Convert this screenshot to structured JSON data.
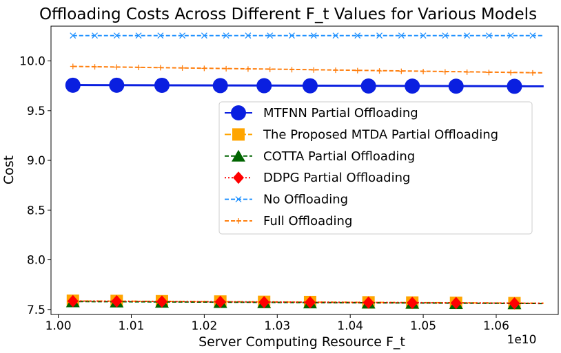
{
  "chart_data": {
    "type": "line",
    "title": "Offloading Costs Across Different F_t Values for Various Models",
    "xlabel": "Server Computing Resource F_t",
    "ylabel": "Cost",
    "x_offset_text": "1e10",
    "xlim": [
      0.999,
      1.0685
    ],
    "ylim": [
      7.45,
      10.35
    ],
    "x_ticks": [
      1.0,
      1.01,
      1.02,
      1.03,
      1.04,
      1.05,
      1.06
    ],
    "x_tick_labels": [
      "1.00",
      "1.01",
      "1.02",
      "1.03",
      "1.04",
      "1.05",
      "1.06"
    ],
    "y_ticks": [
      7.5,
      8.0,
      8.5,
      9.0,
      9.5,
      10.0
    ],
    "y_tick_labels": [
      "7.5",
      "8.0",
      "8.5",
      "9.0",
      "9.5",
      "10.0"
    ],
    "legend_position": "center-right",
    "series": [
      {
        "name": "MTFNN Partial Offloading",
        "color": "#0a1fe0",
        "line_style": "solid",
        "marker": "circle",
        "line": {
          "x": [
            1.002,
            1.0665
          ],
          "y": [
            9.758,
            9.745
          ]
        },
        "points": {
          "x": [
            1.002,
            1.008,
            1.0142,
            1.0222,
            1.0282,
            1.0345,
            1.0425,
            1.0485,
            1.0545,
            1.0625
          ],
          "y": [
            9.756,
            9.756,
            9.755,
            9.752,
            9.751,
            9.75,
            9.748,
            9.747,
            9.746,
            9.745
          ]
        }
      },
      {
        "name": "The Proposed MTDA Partial Offloading",
        "color": "#ffa500",
        "line_style": "dashdot",
        "marker": "square",
        "line": {
          "x": [
            1.002,
            1.0665
          ],
          "y": [
            7.586,
            7.563
          ]
        },
        "points": {
          "x": [
            1.002,
            1.008,
            1.0142,
            1.0222,
            1.0282,
            1.0345,
            1.0425,
            1.0485,
            1.0545,
            1.0625
          ],
          "y": [
            7.588,
            7.586,
            7.583,
            7.58,
            7.577,
            7.575,
            7.572,
            7.57,
            7.567,
            7.564
          ]
        }
      },
      {
        "name": "COTTA Partial Offloading",
        "color": "#006400",
        "line_style": "dashed",
        "marker": "triangle",
        "line": {
          "x": [
            1.002,
            1.0665
          ],
          "y": [
            7.58,
            7.56
          ]
        },
        "points": {
          "x": [
            1.002,
            1.008,
            1.0142,
            1.0222,
            1.0282,
            1.0345,
            1.0425,
            1.0485,
            1.0545,
            1.0625
          ],
          "y": [
            7.578,
            7.576,
            7.574,
            7.571,
            7.569,
            7.567,
            7.565,
            7.563,
            7.561,
            7.559
          ]
        }
      },
      {
        "name": "DDPG Partial Offloading",
        "color": "#ff0000",
        "line_style": "dotted",
        "marker": "diamond",
        "line": {
          "x": [
            1.002,
            1.0665
          ],
          "y": [
            7.585,
            7.562
          ]
        },
        "points": {
          "x": [
            1.002,
            1.008,
            1.0142,
            1.0222,
            1.0282,
            1.0345,
            1.0425,
            1.0485,
            1.0545,
            1.0625
          ],
          "y": [
            7.584,
            7.582,
            7.58,
            7.577,
            7.574,
            7.572,
            7.569,
            7.567,
            7.565,
            7.562
          ]
        }
      },
      {
        "name": "No Offloading",
        "color": "#1e90ff",
        "line_style": "dashed",
        "marker": "x",
        "line": {
          "x": [
            1.002,
            1.0665
          ],
          "y": [
            10.255,
            10.255
          ]
        },
        "points": {
          "x": [
            1.002,
            1.005,
            1.008,
            1.011,
            1.014,
            1.017,
            1.02,
            1.023,
            1.026,
            1.029,
            1.032,
            1.035,
            1.038,
            1.041,
            1.044,
            1.047,
            1.05,
            1.053,
            1.056,
            1.059,
            1.062,
            1.065
          ],
          "y": [
            10.255,
            10.255,
            10.255,
            10.255,
            10.255,
            10.255,
            10.255,
            10.255,
            10.255,
            10.255,
            10.255,
            10.255,
            10.255,
            10.255,
            10.255,
            10.255,
            10.255,
            10.255,
            10.255,
            10.255,
            10.255,
            10.255
          ]
        }
      },
      {
        "name": "Full Offloading",
        "color": "#ff7f0e",
        "line_style": "dashed",
        "marker": "plus",
        "line": {
          "x": [
            1.002,
            1.0665
          ],
          "y": [
            9.945,
            9.88
          ]
        },
        "points": {
          "x": [
            1.002,
            1.005,
            1.008,
            1.011,
            1.014,
            1.017,
            1.02,
            1.023,
            1.026,
            1.029,
            1.032,
            1.035,
            1.038,
            1.041,
            1.044,
            1.047,
            1.05,
            1.053,
            1.056,
            1.059,
            1.062,
            1.065
          ],
          "y": [
            9.945,
            9.941,
            9.938,
            9.935,
            9.932,
            9.929,
            9.925,
            9.922,
            9.918,
            9.915,
            9.912,
            9.909,
            9.906,
            9.903,
            9.899,
            9.896,
            9.893,
            9.89,
            9.887,
            9.884,
            9.882,
            9.88
          ]
        }
      }
    ]
  }
}
